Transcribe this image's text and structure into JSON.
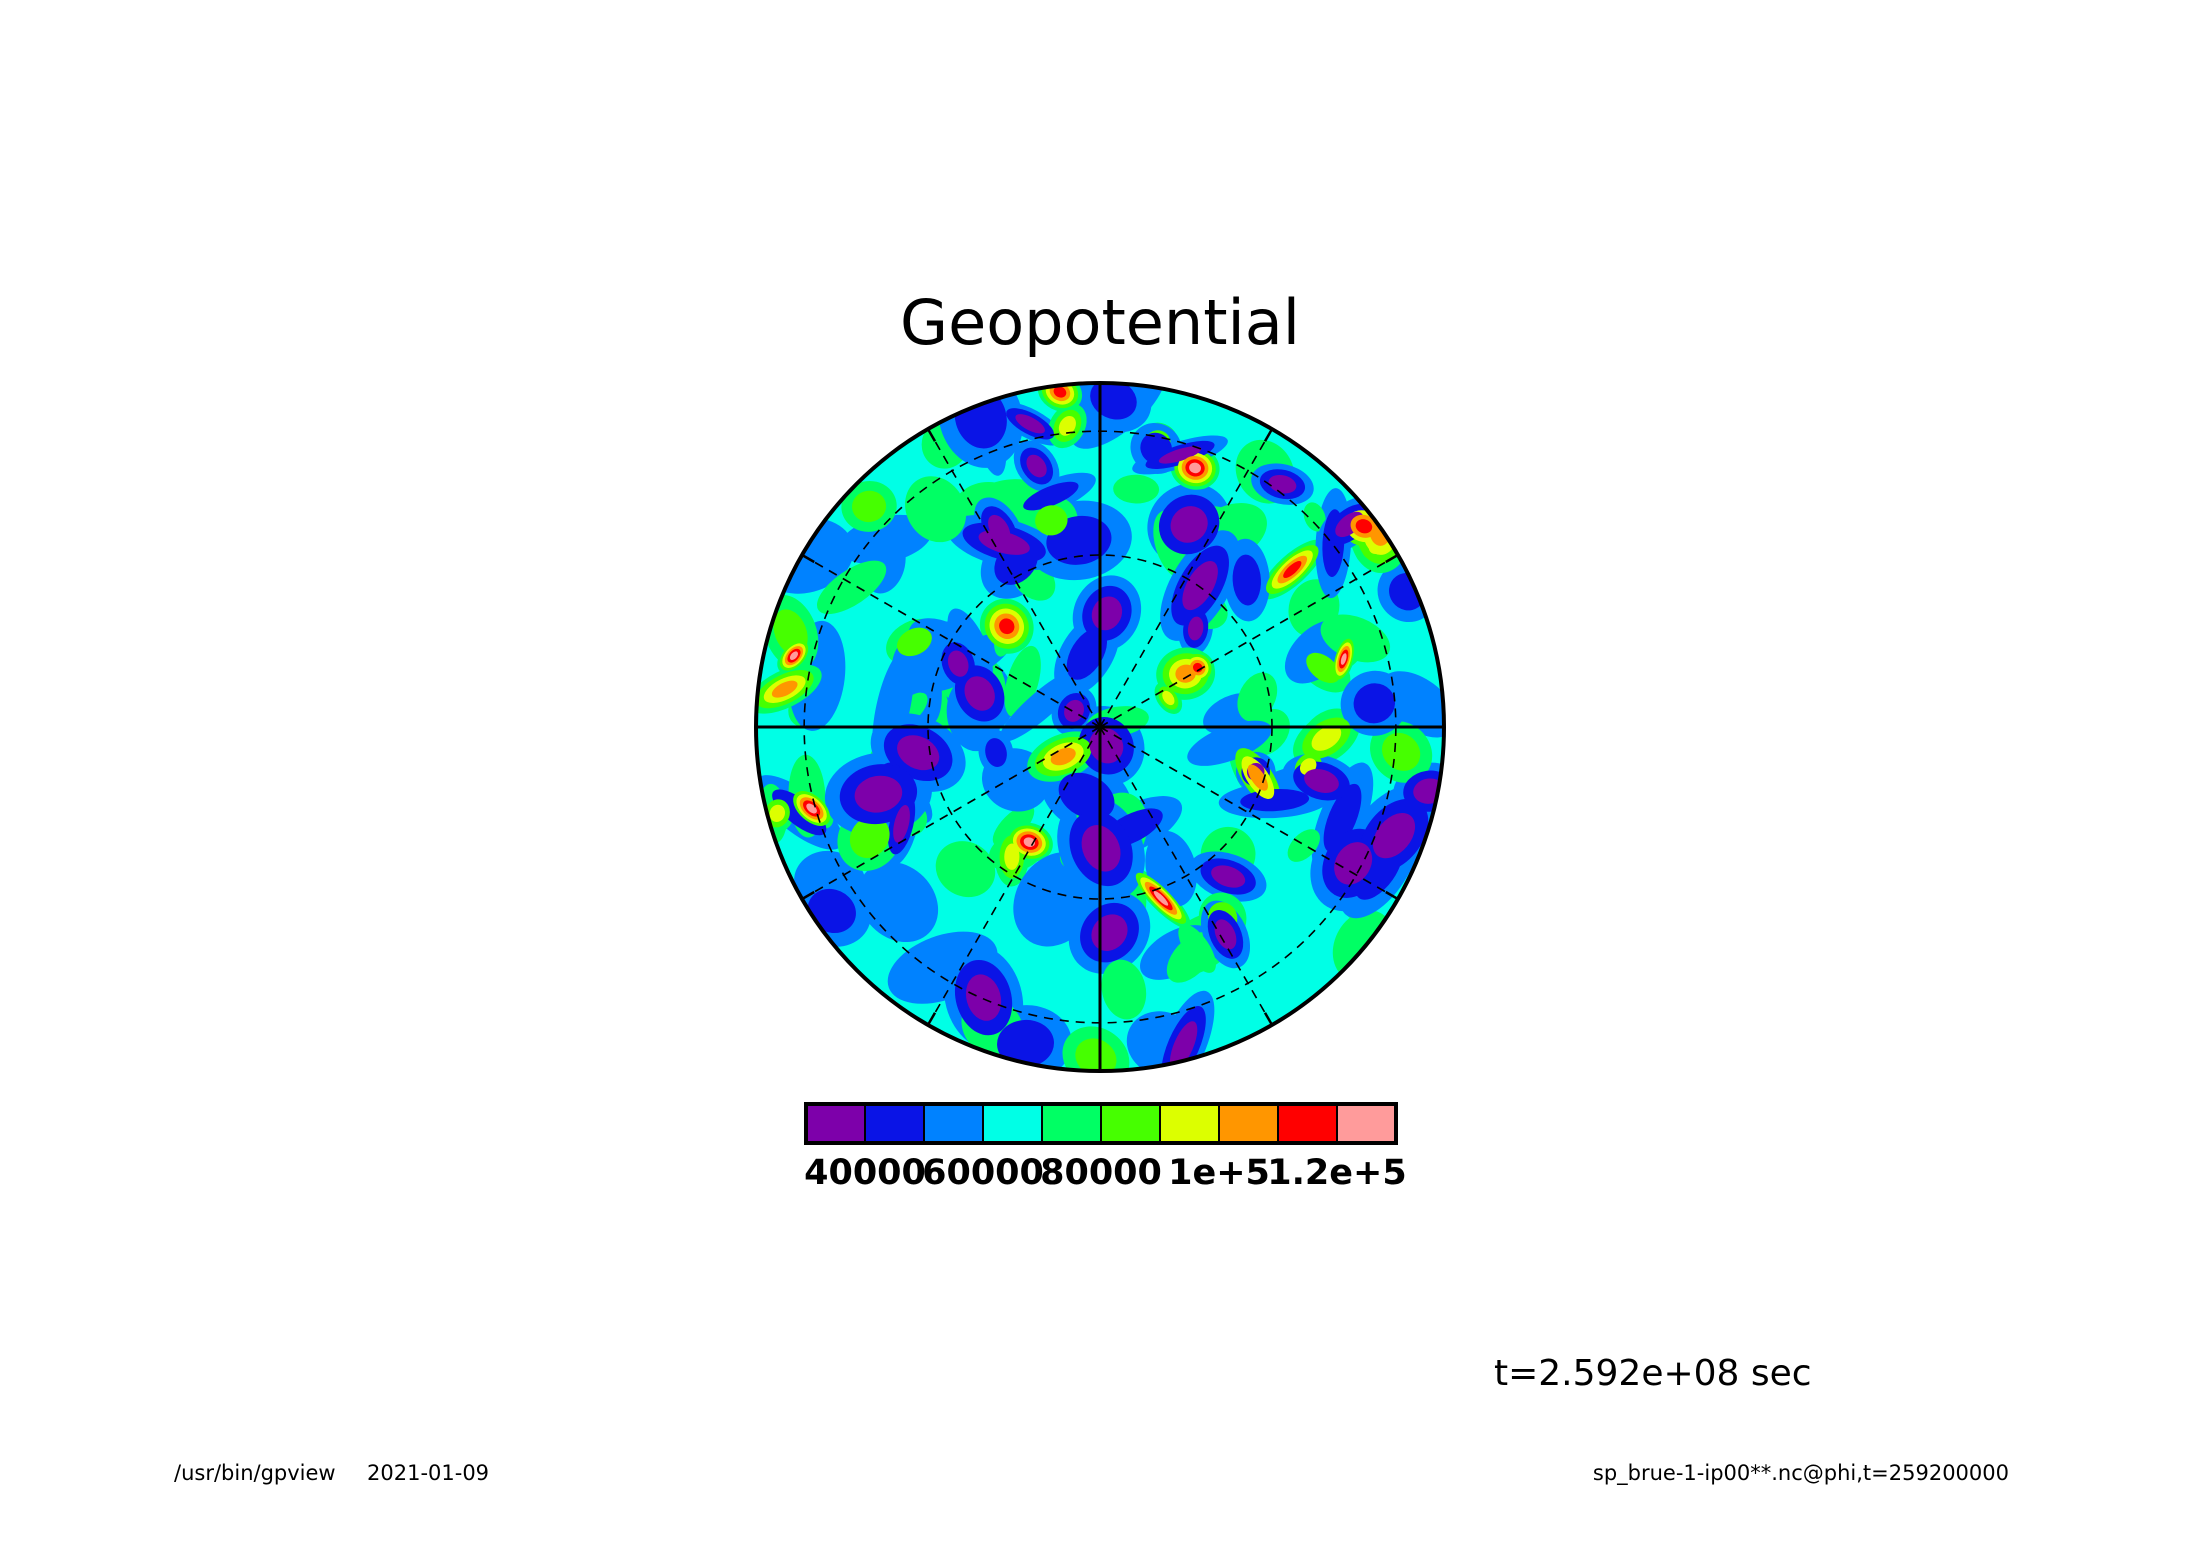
{
  "chart_data": {
    "type": "polar-contour",
    "title": "Geopotential",
    "colorbar": {
      "colors": [
        "#7d00aa",
        "#0a14e6",
        "#0082ff",
        "#00ffe6",
        "#00ff64",
        "#46ff00",
        "#dcff00",
        "#ff9600",
        "#ff0000",
        "#ff9b9b"
      ],
      "lim": [
        30000,
        130000
      ],
      "ticks": [
        40000,
        60000,
        80000,
        {
          "value": 100000,
          "label": "1e+5"
        },
        {
          "value": 120000,
          "label": "1.2e+5"
        }
      ]
    },
    "annotation": "t=2.592e+08 sec"
  },
  "footer": {
    "left": [
      "/usr/bin/gpview",
      "2021-01-09"
    ],
    "right": "sp_brue-1-ip00**.nc@phi,t=259200000"
  }
}
